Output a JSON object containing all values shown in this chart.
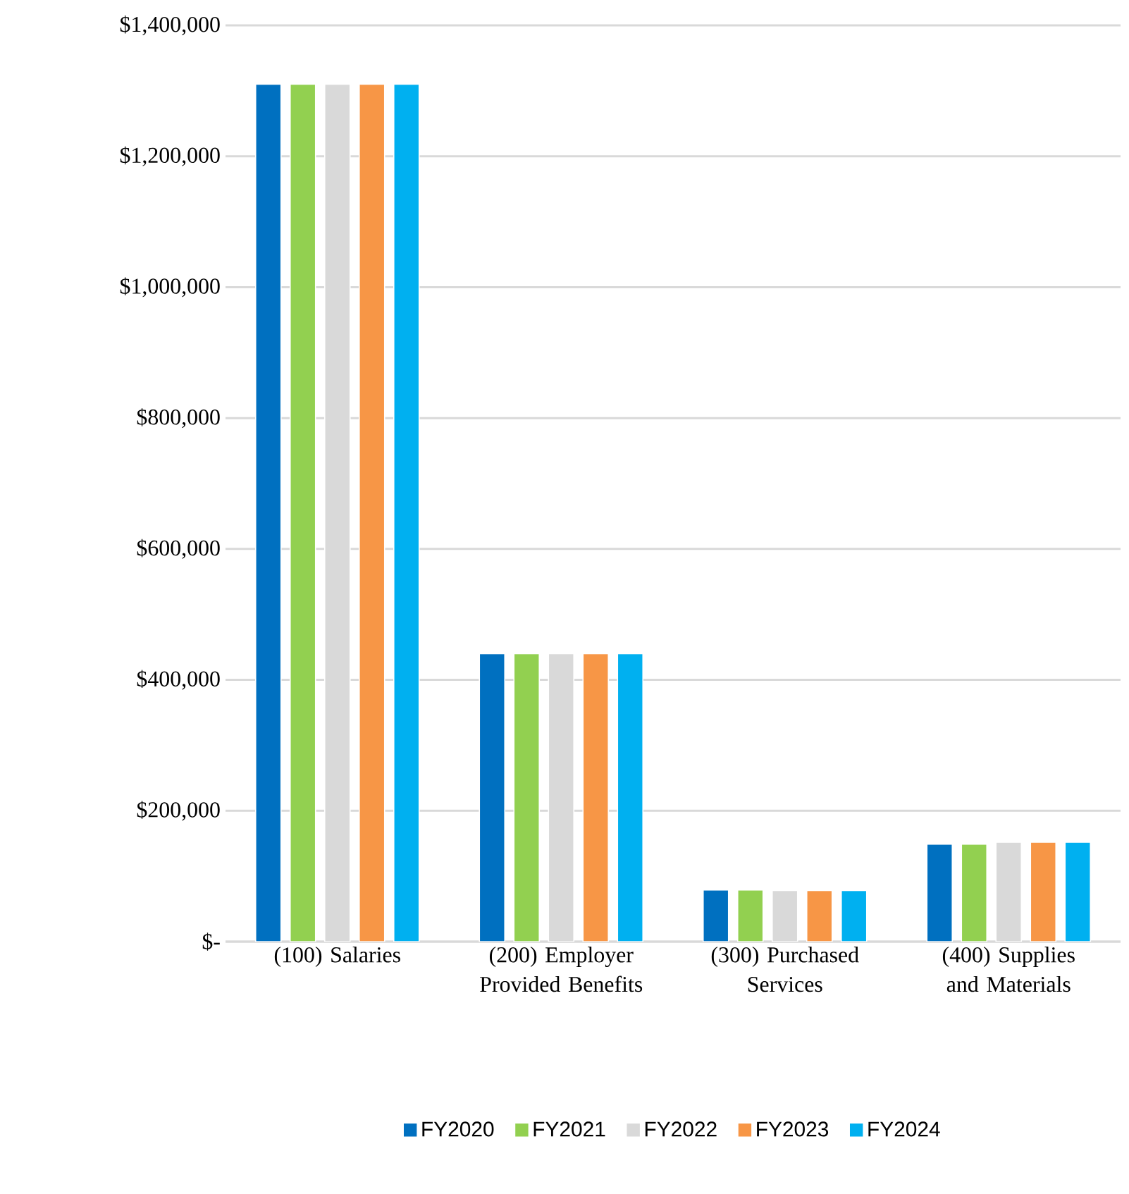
{
  "chart_data": {
    "type": "bar",
    "categories": [
      "(100) Salaries",
      "(200) Employer Provided Benefits",
      "(300) Purchased Services",
      "(400) Supplies and Materials"
    ],
    "series": [
      {
        "name": "FY2020",
        "color": "#0070c0",
        "values": [
          1310000,
          440000,
          79000,
          149000
        ]
      },
      {
        "name": "FY2021",
        "color": "#92d050",
        "values": [
          1310000,
          440000,
          79000,
          149000
        ]
      },
      {
        "name": "FY2022",
        "color": "#d9d9d9",
        "values": [
          1310000,
          440000,
          78000,
          152000
        ]
      },
      {
        "name": "FY2023",
        "color": "#f79646",
        "values": [
          1310000,
          440000,
          78000,
          152000
        ]
      },
      {
        "name": "FY2024",
        "color": "#00b0f0",
        "values": [
          1310000,
          440000,
          78000,
          152000
        ]
      }
    ],
    "ylim": [
      0,
      1400000
    ],
    "yticks": [
      {
        "value": 0,
        "label": "$-"
      },
      {
        "value": 200000,
        "label": "$200,000"
      },
      {
        "value": 400000,
        "label": "$400,000"
      },
      {
        "value": 600000,
        "label": "$600,000"
      },
      {
        "value": 800000,
        "label": "$800,000"
      },
      {
        "value": 1000000,
        "label": "$1,000,000"
      },
      {
        "value": 1200000,
        "label": "$1,200,000"
      },
      {
        "value": 1400000,
        "label": "$1,400,000"
      }
    ],
    "grid": "y",
    "legend": "bottom"
  }
}
